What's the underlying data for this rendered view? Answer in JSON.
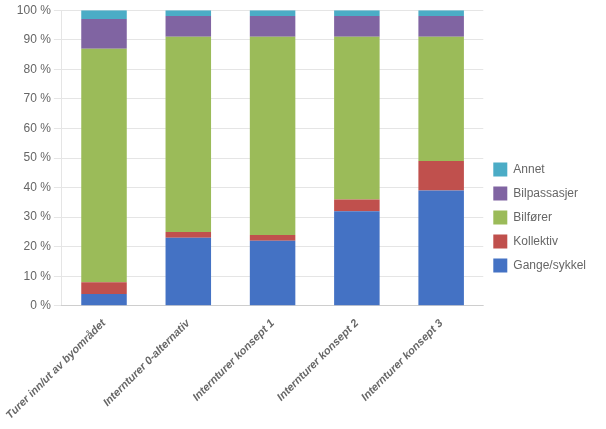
{
  "chart_data": {
    "type": "bar",
    "stacked": true,
    "categories": [
      "Turer inn/ut av byområdet",
      "Internturer 0-alternativ",
      "Internturer konsept 1",
      "Internturer konsept 2",
      "Internturer konsept 3"
    ],
    "series": [
      {
        "name": "Gange/sykkel",
        "color": "#4472C4",
        "values": [
          4,
          23,
          22,
          32,
          39
        ]
      },
      {
        "name": "Kollektiv",
        "color": "#C0504D",
        "values": [
          4,
          2,
          2,
          4,
          10
        ]
      },
      {
        "name": "Bilfører",
        "color": "#9BBB59",
        "values": [
          79,
          66,
          67,
          55,
          42
        ]
      },
      {
        "name": "Bilpassasjer",
        "color": "#8064A2",
        "values": [
          10,
          7,
          7,
          7,
          7
        ]
      },
      {
        "name": "Annet",
        "color": "#4BACC6",
        "values": [
          3,
          2,
          2,
          2,
          2
        ]
      }
    ],
    "ylim": [
      0,
      100
    ],
    "yticks": [
      {
        "value": 0,
        "label": "0 %"
      },
      {
        "value": 10,
        "label": "10 %"
      },
      {
        "value": 20,
        "label": "20 %"
      },
      {
        "value": 30,
        "label": "30 %"
      },
      {
        "value": 40,
        "label": "40 %"
      },
      {
        "value": 50,
        "label": "50 %"
      },
      {
        "value": 60,
        "label": "60 %"
      },
      {
        "value": 70,
        "label": "70 %"
      },
      {
        "value": 80,
        "label": "80 %"
      },
      {
        "value": 90,
        "label": "90 %"
      },
      {
        "value": 100,
        "label": "100 %"
      }
    ],
    "grid": true,
    "legend": "right"
  }
}
